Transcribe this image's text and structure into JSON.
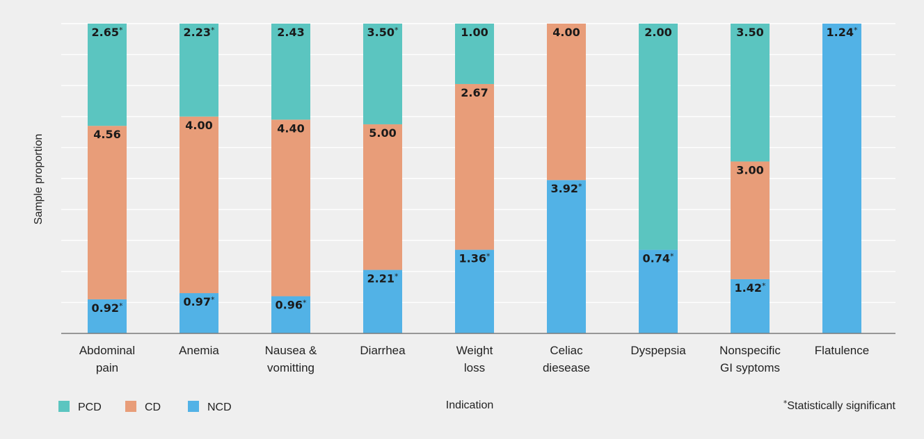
{
  "chart_data": {
    "type": "bar",
    "stacked": true,
    "xlabel": "Indication",
    "ylabel": "Sample proportion",
    "ylim": [
      0,
      1
    ],
    "grid": true,
    "legend_position": "bottom-left",
    "categories": [
      [
        "Abdominal",
        "pain"
      ],
      [
        "Anemia"
      ],
      [
        "Nausea &",
        "vomitting"
      ],
      [
        "Diarrhea"
      ],
      [
        "Weight",
        "loss"
      ],
      [
        "Celiac",
        "diesease"
      ],
      [
        "Dyspepsia"
      ],
      [
        "Nonspecific",
        "GI syptoms"
      ],
      [
        "Flatulence"
      ]
    ],
    "series": [
      {
        "name": "NCD",
        "color": "#52b2e6",
        "proportions": [
          0.11,
          0.13,
          0.12,
          0.205,
          0.27,
          0.495,
          0.27,
          0.175,
          1.0
        ],
        "labels": [
          "0.92",
          "0.97",
          "0.96",
          "2.21",
          "1.36",
          "3.92",
          "0.74",
          "1.42",
          "1.24"
        ],
        "significant": [
          true,
          true,
          true,
          true,
          true,
          true,
          true,
          true,
          true
        ]
      },
      {
        "name": "CD",
        "color": "#e89d79",
        "proportions": [
          0.56,
          0.57,
          0.57,
          0.47,
          0.535,
          0.505,
          0,
          0.38,
          0
        ],
        "labels": [
          "4.56",
          "4.00",
          "4.40",
          "5.00",
          "2.67",
          "4.00",
          "",
          "3.00",
          ""
        ],
        "significant": [
          false,
          false,
          false,
          false,
          false,
          false,
          false,
          false,
          false
        ]
      },
      {
        "name": "PCD",
        "color": "#5bc5c0",
        "proportions": [
          0.33,
          0.3,
          0.31,
          0.325,
          0.195,
          0,
          0.73,
          0.445,
          0
        ],
        "labels": [
          "2.65",
          "2.23",
          "2.43",
          "3.50",
          "1.00",
          "",
          "2.00",
          "3.50",
          ""
        ],
        "significant": [
          true,
          true,
          false,
          true,
          false,
          false,
          false,
          false,
          false
        ]
      }
    ],
    "legend": [
      "PCD",
      "CD",
      "NCD"
    ],
    "significance_marker": "*",
    "note": "Statistically significant"
  }
}
